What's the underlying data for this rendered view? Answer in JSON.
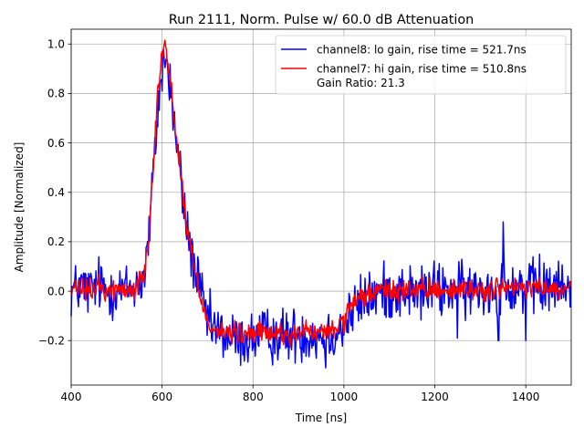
{
  "chart_data": {
    "type": "line",
    "title": "Run 2111, Norm. Pulse w/ 60.0 dB Attenuation",
    "xlabel": "Time [ns]",
    "ylabel": "Amplitude [Normalized]",
    "xlim": [
      400,
      1500
    ],
    "ylim": [
      -0.38,
      1.06
    ],
    "xticks": [
      400,
      600,
      800,
      1000,
      1200,
      1400
    ],
    "xtick_labels": [
      "400",
      "600",
      "800",
      "1000",
      "1200",
      "1400"
    ],
    "yticks": [
      -0.2,
      0.0,
      0.2,
      0.4,
      0.6,
      0.8,
      1.0
    ],
    "ytick_labels": [
      "−0.2",
      "0.0",
      "0.2",
      "0.4",
      "0.6",
      "0.8",
      "1.0"
    ],
    "grid": true,
    "legend_position": "top-right",
    "extra_legend_text": "Gain Ratio: 21.3",
    "series": [
      {
        "name": "channel8: lo gain, rise time = 521.7ns",
        "color": "#0000ff",
        "x": [
          400,
          420,
          440,
          460,
          480,
          500,
          520,
          540,
          560,
          570,
          580,
          590,
          600,
          605,
          610,
          620,
          630,
          640,
          650,
          660,
          670,
          680,
          690,
          700,
          720,
          740,
          760,
          780,
          800,
          820,
          840,
          860,
          880,
          900,
          920,
          940,
          960,
          980,
          1000,
          1020,
          1040,
          1060,
          1080,
          1100,
          1120,
          1140,
          1160,
          1180,
          1200,
          1220,
          1240,
          1260,
          1280,
          1300,
          1320,
          1340,
          1350,
          1360,
          1380,
          1400,
          1420,
          1440,
          1460,
          1480,
          1500
        ],
        "values": [
          0.0,
          0.02,
          0.0,
          0.03,
          0.0,
          0.01,
          0.0,
          0.02,
          0.05,
          0.2,
          0.45,
          0.72,
          0.9,
          0.95,
          0.92,
          0.8,
          0.62,
          0.48,
          0.3,
          0.2,
          0.1,
          0.03,
          -0.05,
          -0.12,
          -0.16,
          -0.18,
          -0.2,
          -0.2,
          -0.19,
          -0.18,
          -0.18,
          -0.18,
          -0.18,
          -0.17,
          -0.18,
          -0.18,
          -0.18,
          -0.17,
          -0.14,
          -0.08,
          -0.04,
          -0.02,
          -0.01,
          0.0,
          0.0,
          0.0,
          -0.01,
          0.0,
          0.01,
          0.0,
          0.01,
          0.0,
          0.0,
          0.01,
          0.01,
          0.02,
          0.05,
          0.02,
          0.02,
          0.01,
          0.01,
          0.0,
          0.02,
          0.01,
          0.01
        ],
        "noise": 0.055,
        "spikes": [
          [
            1350,
            0.28
          ],
          [
            1340,
            -0.2
          ],
          [
            1400,
            -0.2
          ],
          [
            1430,
            0.15
          ],
          [
            960,
            -0.31
          ],
          [
            1250,
            -0.19
          ]
        ]
      },
      {
        "name": "channel7: hi gain, rise time = 510.8ns",
        "color": "#ff0000",
        "x": [
          400,
          420,
          440,
          460,
          480,
          500,
          520,
          540,
          560,
          570,
          580,
          590,
          600,
          605,
          610,
          620,
          630,
          640,
          650,
          660,
          670,
          680,
          690,
          700,
          720,
          740,
          760,
          780,
          800,
          820,
          840,
          860,
          880,
          900,
          920,
          940,
          960,
          980,
          1000,
          1020,
          1040,
          1060,
          1080,
          1100,
          1120,
          1140,
          1160,
          1180,
          1200,
          1220,
          1240,
          1260,
          1280,
          1300,
          1320,
          1340,
          1350,
          1360,
          1380,
          1400,
          1420,
          1440,
          1460,
          1480,
          1500
        ],
        "values": [
          0.0,
          0.01,
          0.0,
          0.02,
          0.0,
          0.01,
          0.0,
          0.01,
          0.06,
          0.22,
          0.5,
          0.8,
          0.96,
          1.0,
          0.96,
          0.82,
          0.64,
          0.5,
          0.32,
          0.2,
          0.1,
          0.02,
          -0.06,
          -0.12,
          -0.16,
          -0.17,
          -0.17,
          -0.18,
          -0.17,
          -0.17,
          -0.17,
          -0.17,
          -0.18,
          -0.17,
          -0.16,
          -0.17,
          -0.17,
          -0.15,
          -0.12,
          -0.06,
          -0.02,
          -0.01,
          0.0,
          0.0,
          0.0,
          0.01,
          0.0,
          0.0,
          0.01,
          0.01,
          0.0,
          0.01,
          0.01,
          0.0,
          0.01,
          0.01,
          0.02,
          0.01,
          0.01,
          0.01,
          0.02,
          0.01,
          0.01,
          0.0,
          0.01
        ],
        "noise": 0.022,
        "spikes": [
          [
            605,
            1.0
          ]
        ]
      }
    ]
  }
}
